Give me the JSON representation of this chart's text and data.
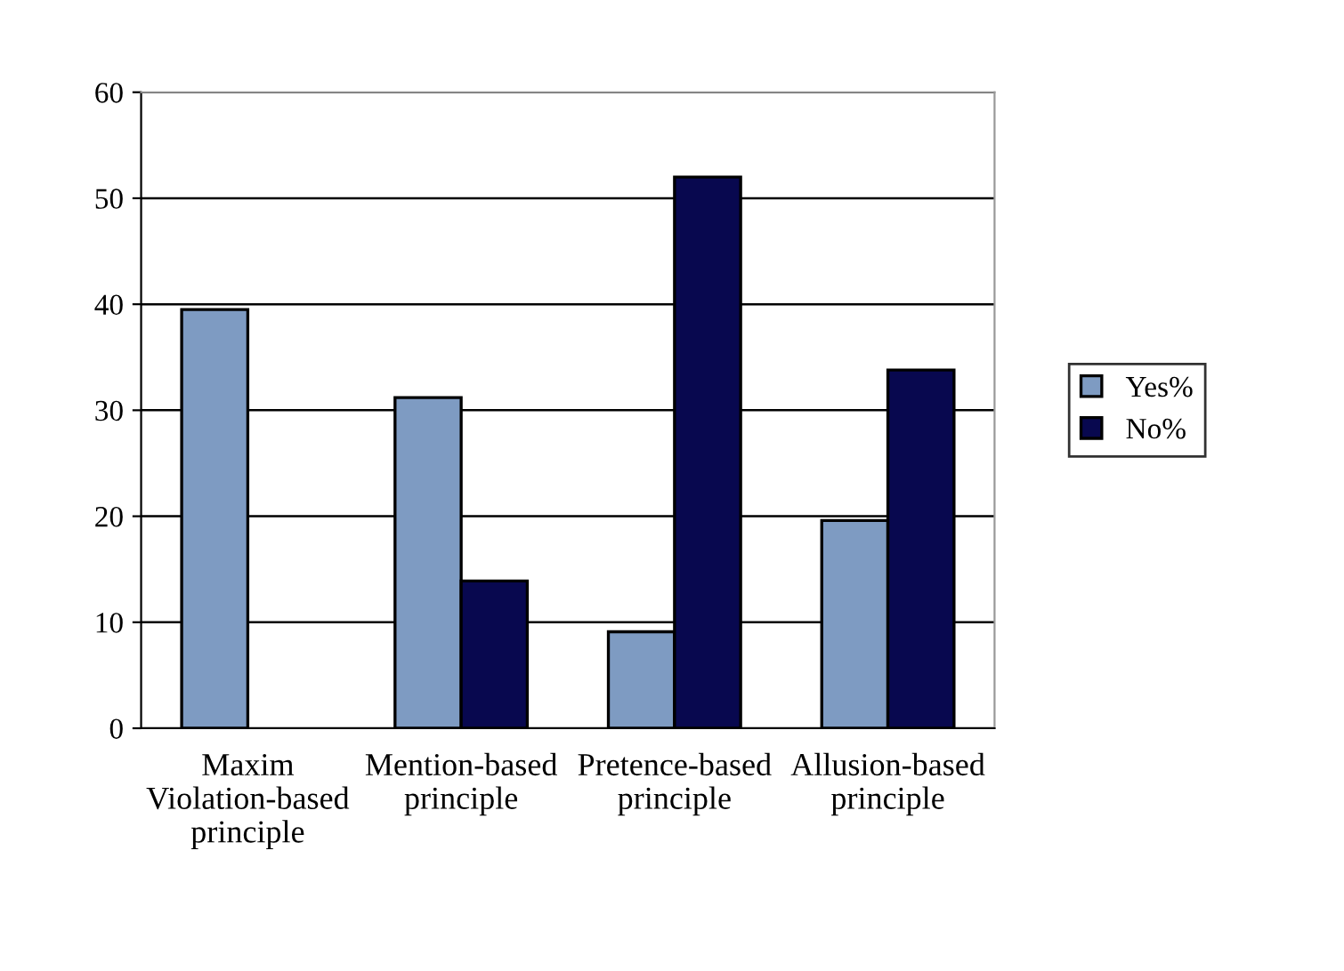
{
  "chart_data": {
    "type": "bar",
    "categories": [
      "Maxim\nViolation-based\nprinciple",
      "Mention-based\nprinciple",
      "Pretence-based\nprinciple",
      "Allusion-based\nprinciple"
    ],
    "series": [
      {
        "name": "Yes%",
        "color": "#7e9bc2",
        "values": [
          39.5,
          31.2,
          9.1,
          19.6
        ]
      },
      {
        "name": "No%",
        "color": "#08084f",
        "values": [
          null,
          13.9,
          52.0,
          33.8
        ]
      }
    ],
    "ylim": [
      0,
      60
    ],
    "yticks": [
      0,
      10,
      20,
      30,
      40,
      50,
      60
    ],
    "grid": "y",
    "legend": "right"
  }
}
